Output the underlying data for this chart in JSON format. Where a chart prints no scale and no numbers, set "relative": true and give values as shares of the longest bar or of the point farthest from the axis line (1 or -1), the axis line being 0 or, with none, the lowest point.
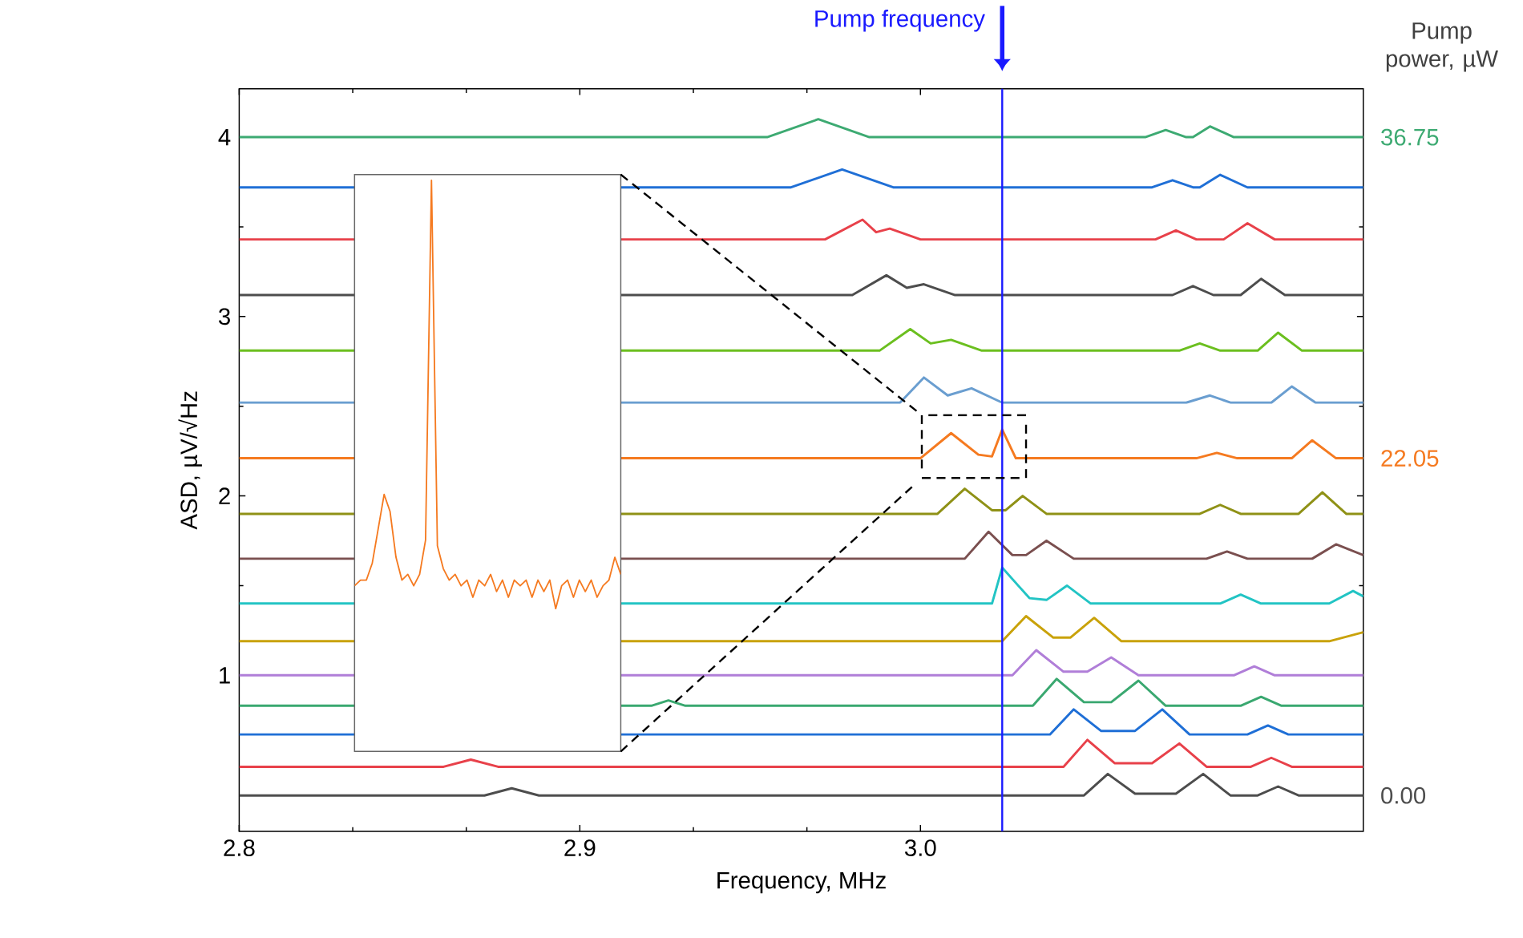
{
  "chart_data": [
    {
      "type": "line",
      "xlabel": "Frequency, MHz",
      "ylabel": "ASD,  µV/√Hz",
      "legend_title": "Pump power, µW",
      "xlim": [
        2.8,
        3.13
      ],
      "ylim": [
        0.13,
        4.27
      ],
      "xticks": [
        2.8,
        2.9,
        {
          "value": 3.0,
          "label": "3.0"
        }
      ],
      "yticks": [
        1,
        2,
        3,
        4
      ],
      "ref_lines": [
        {
          "axis": "x",
          "value": 3.024,
          "label": "Pump frequency",
          "color": "#1a1aff"
        }
      ],
      "series": [
        {
          "name": "36.75",
          "color": "#3daa72",
          "x": [
            2.8,
            2.955,
            2.97,
            2.985,
            3.066,
            3.072,
            3.078,
            3.08,
            3.085,
            3.092,
            3.13
          ],
          "values": [
            4.0,
            4.0,
            4.1,
            4.0,
            4.0,
            4.04,
            4.0,
            4.0,
            4.06,
            4.0,
            4.0
          ]
        },
        {
          "color": "#1f6fd6",
          "x": [
            2.8,
            2.834,
            2.87,
            2.912,
            2.962,
            2.977,
            2.992,
            3.068,
            3.074,
            3.08,
            3.082,
            3.088,
            3.096,
            3.13
          ],
          "values": [
            3.72,
            3.72,
            null,
            3.72,
            3.72,
            3.82,
            3.72,
            3.72,
            3.76,
            3.72,
            3.72,
            3.79,
            3.72,
            3.72
          ]
        },
        {
          "color": "#e8414a",
          "x": [
            2.8,
            2.834,
            2.87,
            2.912,
            2.972,
            2.983,
            2.987,
            2.991,
            3.0,
            3.069,
            3.075,
            3.081,
            3.089,
            3.096,
            3.104,
            3.13
          ],
          "values": [
            3.43,
            3.43,
            null,
            3.43,
            3.43,
            3.54,
            3.47,
            3.49,
            3.43,
            3.43,
            3.48,
            3.43,
            3.43,
            3.52,
            3.43,
            3.43
          ]
        },
        {
          "color": "#4d4d4d",
          "x": [
            2.8,
            2.834,
            2.87,
            2.912,
            2.98,
            2.99,
            2.996,
            3.001,
            3.01,
            3.074,
            3.08,
            3.086,
            3.094,
            3.1,
            3.107,
            3.13
          ],
          "values": [
            3.12,
            3.12,
            null,
            3.12,
            3.12,
            3.23,
            3.16,
            3.18,
            3.12,
            3.12,
            3.17,
            3.12,
            3.12,
            3.21,
            3.12,
            3.12
          ]
        },
        {
          "color": "#6bbf1f",
          "x": [
            2.8,
            2.834,
            2.87,
            2.912,
            2.988,
            2.997,
            3.003,
            3.009,
            3.018,
            3.076,
            3.082,
            3.088,
            3.099,
            3.105,
            3.112,
            3.13
          ],
          "values": [
            2.81,
            2.81,
            null,
            2.81,
            2.81,
            2.93,
            2.85,
            2.87,
            2.81,
            2.81,
            2.85,
            2.81,
            2.81,
            2.91,
            2.81,
            2.81
          ]
        },
        {
          "color": "#6a9ed0",
          "x": [
            2.8,
            2.834,
            2.87,
            2.912,
            2.994,
            3.001,
            3.008,
            3.015,
            3.024,
            3.078,
            3.085,
            3.091,
            3.103,
            3.109,
            3.116,
            3.13
          ],
          "values": [
            2.52,
            2.52,
            null,
            2.52,
            2.52,
            2.66,
            2.56,
            2.6,
            2.52,
            2.52,
            2.56,
            2.52,
            2.52,
            2.61,
            2.52,
            2.52
          ]
        },
        {
          "name": "22.05",
          "color": "#f57a20",
          "x": [
            2.8,
            2.834,
            2.87,
            2.912,
            3.0,
            3.009,
            3.017,
            3.021,
            3.024,
            3.028,
            3.081,
            3.087,
            3.093,
            3.109,
            3.115,
            3.122,
            3.13
          ],
          "values": [
            2.21,
            2.21,
            null,
            2.21,
            2.21,
            2.35,
            2.23,
            2.22,
            2.37,
            2.21,
            2.21,
            2.24,
            2.21,
            2.21,
            2.31,
            2.21,
            2.21
          ]
        },
        {
          "color": "#8f9116",
          "x": [
            2.8,
            2.834,
            2.87,
            2.912,
            3.005,
            3.013,
            3.021,
            3.025,
            3.03,
            3.037,
            3.082,
            3.088,
            3.094,
            3.111,
            3.118,
            3.125,
            3.13
          ],
          "values": [
            1.9,
            1.9,
            null,
            1.9,
            1.9,
            2.04,
            1.92,
            1.92,
            2.0,
            1.9,
            1.9,
            1.95,
            1.9,
            1.9,
            2.02,
            1.9,
            1.9
          ]
        },
        {
          "color": "#7a4f4f",
          "x": [
            2.8,
            2.834,
            2.87,
            2.912,
            3.013,
            3.02,
            3.027,
            3.031,
            3.037,
            3.045,
            3.084,
            3.09,
            3.096,
            3.115,
            3.122,
            3.13
          ],
          "values": [
            1.65,
            1.65,
            null,
            1.65,
            1.65,
            1.8,
            1.67,
            1.67,
            1.75,
            1.65,
            1.65,
            1.69,
            1.65,
            1.65,
            1.73,
            1.67
          ]
        },
        {
          "color": "#22c4c4",
          "x": [
            2.8,
            2.834,
            2.87,
            2.912,
            3.021,
            3.024,
            3.032,
            3.037,
            3.043,
            3.05,
            3.088,
            3.094,
            3.1,
            3.12,
            3.127,
            3.13
          ],
          "values": [
            1.4,
            1.4,
            null,
            1.4,
            1.4,
            1.6,
            1.43,
            1.42,
            1.5,
            1.4,
            1.4,
            1.45,
            1.4,
            1.4,
            1.47,
            1.44
          ]
        },
        {
          "color": "#c9a20a",
          "x": [
            2.8,
            2.834,
            2.87,
            2.912,
            3.024,
            3.031,
            3.039,
            3.044,
            3.051,
            3.059,
            3.12,
            3.13
          ],
          "values": [
            1.19,
            1.19,
            null,
            1.19,
            1.19,
            1.33,
            1.21,
            1.21,
            1.32,
            1.19,
            1.19,
            1.24
          ]
        },
        {
          "color": "#b07ed8",
          "x": [
            2.8,
            2.834,
            2.87,
            2.912,
            3.027,
            3.034,
            3.042,
            3.049,
            3.056,
            3.064,
            3.092,
            3.098,
            3.104,
            3.13
          ],
          "values": [
            1.0,
            1.0,
            null,
            1.0,
            1.0,
            1.14,
            1.02,
            1.02,
            1.1,
            1.0,
            1.0,
            1.05,
            1.0,
            1.0
          ]
        },
        {
          "color": "#3aa870",
          "x": [
            2.8,
            2.834,
            2.87,
            2.912,
            2.921,
            2.926,
            2.931,
            3.033,
            3.04,
            3.048,
            3.056,
            3.064,
            3.072,
            3.094,
            3.1,
            3.106,
            3.13
          ],
          "values": [
            0.83,
            0.83,
            null,
            0.83,
            0.83,
            0.86,
            0.83,
            0.83,
            0.98,
            0.85,
            0.85,
            0.97,
            0.83,
            0.83,
            0.88,
            0.83,
            0.83
          ]
        },
        {
          "color": "#1f6fd6",
          "x": [
            2.8,
            2.834,
            2.87,
            2.912,
            3.038,
            3.045,
            3.053,
            3.063,
            3.071,
            3.079,
            3.096,
            3.102,
            3.108,
            3.13
          ],
          "values": [
            0.67,
            0.67,
            null,
            0.67,
            0.67,
            0.81,
            0.69,
            0.69,
            0.81,
            0.67,
            0.67,
            0.72,
            0.67,
            0.67
          ]
        },
        {
          "color": "#e8414a",
          "x": [
            2.8,
            2.86,
            2.868,
            2.876,
            3.042,
            3.049,
            3.057,
            3.068,
            3.076,
            3.084,
            3.097,
            3.103,
            3.109,
            3.13
          ],
          "values": [
            0.49,
            0.49,
            0.53,
            0.49,
            0.49,
            0.64,
            0.51,
            0.51,
            0.62,
            0.49,
            0.49,
            0.54,
            0.49,
            0.49
          ]
        },
        {
          "name": "0.00",
          "color": "#4d4d4d",
          "x": [
            2.8,
            2.872,
            2.88,
            2.888,
            3.048,
            3.055,
            3.063,
            3.075,
            3.083,
            3.091,
            3.099,
            3.105,
            3.111,
            3.13
          ],
          "values": [
            0.33,
            0.33,
            0.37,
            0.33,
            0.33,
            0.45,
            0.34,
            0.34,
            0.45,
            0.33,
            0.33,
            0.38,
            0.33,
            0.33
          ]
        }
      ]
    },
    {
      "type": "line",
      "relative": true,
      "categories": [
        null,
        null,
        null,
        null,
        null,
        null,
        null,
        null,
        null,
        null,
        null,
        null,
        null,
        null,
        null,
        null,
        null,
        null,
        null,
        null,
        null,
        null,
        null,
        null,
        null,
        null,
        null,
        null,
        null,
        null,
        null,
        null,
        null,
        null,
        null,
        null,
        null,
        null,
        null,
        null,
        null,
        null,
        null,
        null,
        null,
        null
      ],
      "series": [
        {
          "color": "#f57a20",
          "values": [
            0.29,
            0.3,
            0.3,
            0.33,
            0.39,
            0.45,
            0.42,
            0.34,
            0.3,
            0.31,
            0.29,
            0.31,
            0.37,
            1,
            0.36,
            0.32,
            0.3,
            0.31,
            0.29,
            0.3,
            0.27,
            0.3,
            0.29,
            0.31,
            0.28,
            0.3,
            0.27,
            0.3,
            0.29,
            0.3,
            0.27,
            0.3,
            0.28,
            0.3,
            0.25,
            0.29,
            0.3,
            0.27,
            0.3,
            0.28,
            0.3,
            0.27,
            0.29,
            0.3,
            0.34,
            0.31
          ]
        }
      ]
    }
  ]
}
